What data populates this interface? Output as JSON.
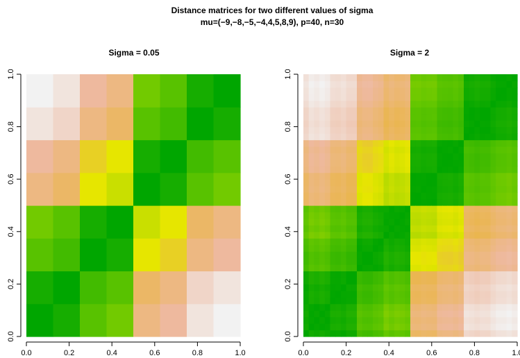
{
  "figure": {
    "title": "Distance matrices for two different values of sigma",
    "subtitle": "mu=(−9,−8,−5,−4,4,5,8,9), p=40, n=30"
  },
  "chart_data": [
    {
      "type": "heatmap",
      "title": "Sigma = 0.05",
      "xlabel": "",
      "ylabel": "",
      "xlim": [
        0,
        1
      ],
      "ylim": [
        0,
        1
      ],
      "xticks": [
        "0.0",
        "0.2",
        "0.4",
        "0.6",
        "0.8",
        "1.0"
      ],
      "yticks": [
        "0.0",
        "0.2",
        "0.4",
        "0.6",
        "0.8",
        "1.0"
      ],
      "n": 8,
      "mu": [
        -9,
        -8,
        -5,
        -4,
        4,
        5,
        8,
        9
      ],
      "sigma": 0.05,
      "value": "distance between cluster means",
      "colorscale": "terrain (green = low, yellow/tan = mid, white = high)"
    },
    {
      "type": "heatmap",
      "title": "Sigma = 2",
      "xlabel": "",
      "ylabel": "",
      "xlim": [
        0,
        1
      ],
      "ylim": [
        0,
        1
      ],
      "xticks": [
        "0.0",
        "0.2",
        "0.4",
        "0.6",
        "0.8",
        "1.0"
      ],
      "yticks": [
        "0.0",
        "0.2",
        "0.4",
        "0.6",
        "0.8",
        "1.0"
      ],
      "n": 40,
      "mu": [
        -9,
        -8,
        -5,
        -4,
        4,
        5,
        8,
        9
      ],
      "sigma": 2,
      "value": "distance between noisy samples",
      "colorscale": "terrain (green = low, yellow/tan = mid, white = high)"
    }
  ]
}
